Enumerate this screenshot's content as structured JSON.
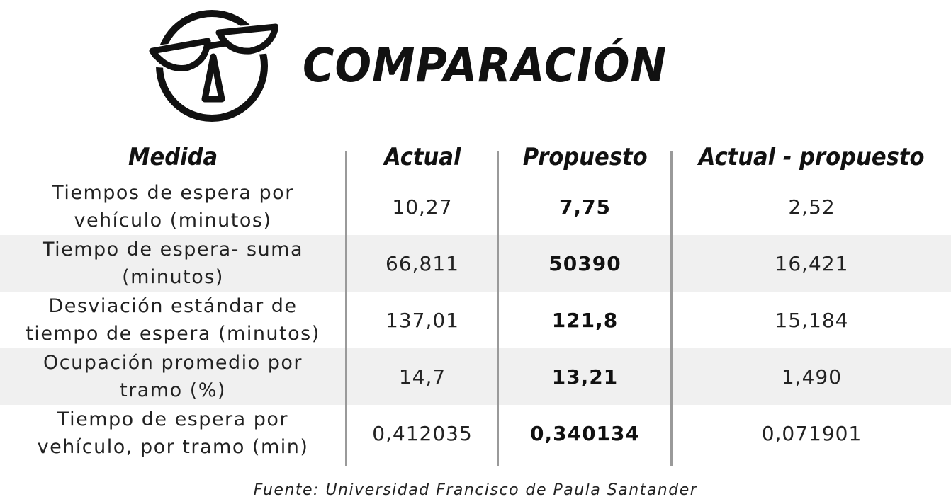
{
  "header": {
    "title": "COMPARACIÓN",
    "icon": "balance-scale-icon"
  },
  "table": {
    "columns": [
      "Medida",
      "Actual",
      "Propuesto",
      "Actual - propuesto"
    ],
    "rows": [
      {
        "measure_line1": "Tiempos de espera por",
        "measure_line2": "vehículo (minutos)",
        "actual": "10,27",
        "propuesto": "7,75",
        "diferencia": "2,52"
      },
      {
        "measure_line1": "Tiempo de espera- suma",
        "measure_line2": "(minutos)",
        "actual": "66,811",
        "propuesto": "50390",
        "diferencia": "16,421"
      },
      {
        "measure_line1": "Desviación estándar de",
        "measure_line2": "tiempo de espera (minutos)",
        "actual": "137,01",
        "propuesto": "121,8",
        "diferencia": "15,184"
      },
      {
        "measure_line1": "Ocupación promedio por",
        "measure_line2": "tramo (%)",
        "actual": "14,7",
        "propuesto": "13,21",
        "diferencia": "1,490"
      },
      {
        "measure_line1": "Tiempo de espera por",
        "measure_line2": "vehículo, por tramo (min)",
        "actual": "0,412035",
        "propuesto": "0,340134",
        "diferencia": "0,071901"
      }
    ]
  },
  "source": "Fuente: Universidad Francisco de Paula Santander",
  "colors": {
    "text": "#111111",
    "row_shade": "#f0f0f0",
    "divider": "#9a9a9a"
  }
}
